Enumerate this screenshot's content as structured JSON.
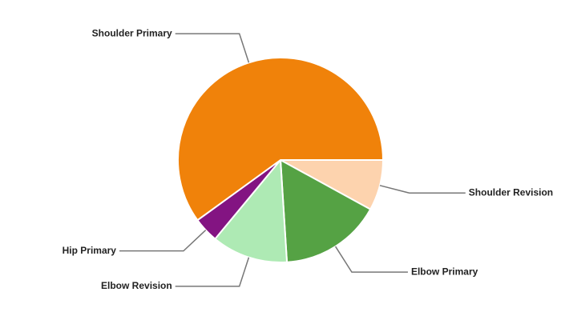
{
  "chart_data": {
    "type": "pie",
    "categories": [
      "Shoulder Revision",
      "Elbow Primary",
      "Elbow Revision",
      "Hip Primary",
      "Shoulder Primary"
    ],
    "values": [
      8,
      16,
      12,
      4,
      60
    ],
    "colors": [
      "#fdd3ae",
      "#55a244",
      "#aeeab4",
      "#831482",
      "#f0820a"
    ]
  }
}
